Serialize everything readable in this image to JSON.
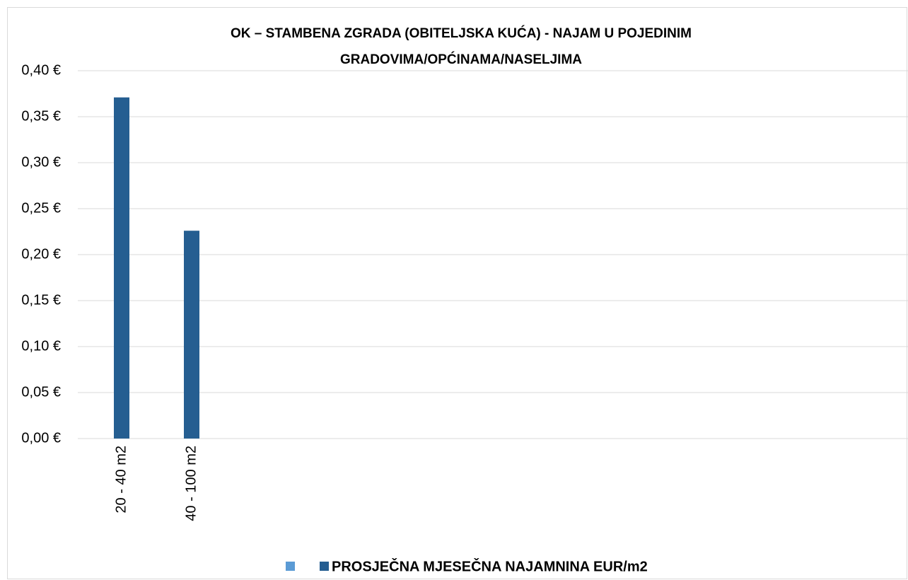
{
  "chart_data": {
    "type": "bar",
    "title": [
      "OK – STAMBENA ZGRADA (OBITELJSKA KUĆA) - NAJAM U POJEDINIM",
      "GRADOVIMA/OPĆINAMA/NASELJIMA"
    ],
    "categories": [
      "20 - 40 m2",
      "40 - 100 m2",
      null,
      null,
      null,
      null,
      null,
      null,
      null,
      null,
      null,
      null
    ],
    "series": [
      {
        "name": null,
        "color": "#5b9bd5",
        "values": [
          null,
          null,
          null,
          null,
          null,
          null,
          null,
          null,
          null,
          null,
          null,
          null
        ]
      },
      {
        "name": "PROSJEČNA MJESEČNA NAJAMNINA EUR/m2",
        "color": "#255e91",
        "values": [
          0.371,
          0.226,
          null,
          null,
          null,
          null,
          null,
          null,
          null,
          null,
          null,
          null
        ]
      }
    ],
    "ylim": [
      0,
      0.4
    ],
    "yticks": [
      {
        "value": 0,
        "label": "0,00 €"
      },
      {
        "value": 0.05,
        "label": "0,05 €"
      },
      {
        "value": 0.1,
        "label": "0,10 €"
      },
      {
        "value": 0.15,
        "label": "0,15 €"
      },
      {
        "value": 0.2,
        "label": "0,20 €"
      },
      {
        "value": 0.25,
        "label": "0,25 €"
      },
      {
        "value": 0.3,
        "label": "0,30 €"
      },
      {
        "value": 0.35,
        "label": "0,35 €"
      },
      {
        "value": 0.4,
        "label": "0,40 €"
      }
    ],
    "grid": true,
    "legend": "bottom"
  }
}
